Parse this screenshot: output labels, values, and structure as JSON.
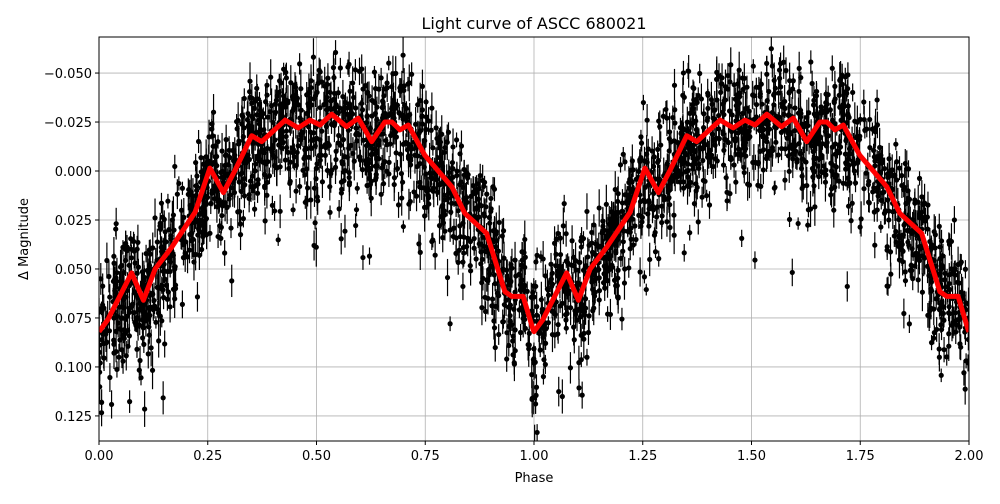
{
  "chart_data": {
    "type": "scatter",
    "title": "Light curve of ASCC 680021",
    "xlabel": "Phase",
    "ylabel": "Δ Magnitude",
    "xlim": [
      0,
      2
    ],
    "ylim": [
      0.1378,
      -0.0684
    ],
    "y_inverted": true,
    "grid": true,
    "x_ticks": [
      "0.00",
      "0.25",
      "0.50",
      "0.75",
      "1.00",
      "1.25",
      "1.50",
      "1.75",
      "2.00"
    ],
    "x_tick_values": [
      0,
      0.25,
      0.5,
      0.75,
      1.0,
      1.25,
      1.5,
      1.75,
      2.0
    ],
    "y_ticks": [
      "−0.050",
      "−0.025",
      "0.000",
      "0.025",
      "0.050",
      "0.075",
      "0.100",
      "0.125"
    ],
    "y_tick_values": [
      -0.05,
      -0.025,
      0,
      0.025,
      0.05,
      0.075,
      0.1,
      0.125
    ],
    "scatter": {
      "name": "",
      "color": "#000000",
      "marker": "circle with error bars"
    },
    "binned_curve": {
      "color": "#ff0000",
      "phase": [
        0.0,
        0.02,
        0.075,
        0.102,
        0.129,
        0.167,
        0.221,
        0.255,
        0.286,
        0.313,
        0.351,
        0.374,
        0.428,
        0.458,
        0.485,
        0.508,
        0.535,
        0.569,
        0.596,
        0.627,
        0.657,
        0.673,
        0.692,
        0.711,
        0.749,
        0.811,
        0.841,
        0.891,
        0.933,
        0.949,
        0.975,
        0.998
      ],
      "magnitude": [
        0.082,
        0.076,
        0.052,
        0.066,
        0.05,
        0.039,
        0.021,
        -0.0015,
        0.011,
        -0.0005,
        -0.018,
        -0.015,
        -0.026,
        -0.022,
        -0.026,
        -0.0235,
        -0.029,
        -0.0226,
        -0.027,
        -0.015,
        -0.025,
        -0.025,
        -0.021,
        -0.0235,
        -0.008,
        0.008,
        0.0216,
        0.0318,
        0.0616,
        0.064,
        0.064,
        0.081
      ],
      "repeats_every_phase": 1
    }
  }
}
